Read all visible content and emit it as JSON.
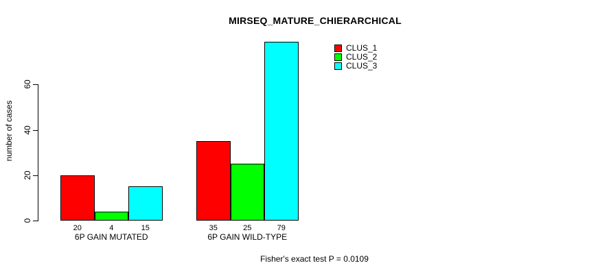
{
  "figure": {
    "background_color": "#ffffff",
    "axis_color": "#000000"
  },
  "chart_data": {
    "type": "bar",
    "title": "MIRSEQ_MATURE_CHIERARCHICAL",
    "ylabel": "number of cases",
    "xlabel": "",
    "categories": [
      "6P GAIN MUTATED",
      "6P GAIN WILD-TYPE"
    ],
    "series": [
      {
        "name": "CLUS_1",
        "color": "#ff0000",
        "values": [
          20,
          35
        ]
      },
      {
        "name": "CLUS_2",
        "color": "#00ff00",
        "values": [
          4,
          25
        ]
      },
      {
        "name": "CLUS_3",
        "color": "#00ffff",
        "values": [
          15,
          79
        ]
      }
    ],
    "yticks": [
      0,
      20,
      40,
      60
    ],
    "ylim": [
      0,
      80
    ],
    "grid": false,
    "bar_value_labels_shown": true,
    "bar_border_color": "#000000",
    "legend_position": "top-right",
    "annotation": "Fisher's exact test P = 0.0109"
  }
}
